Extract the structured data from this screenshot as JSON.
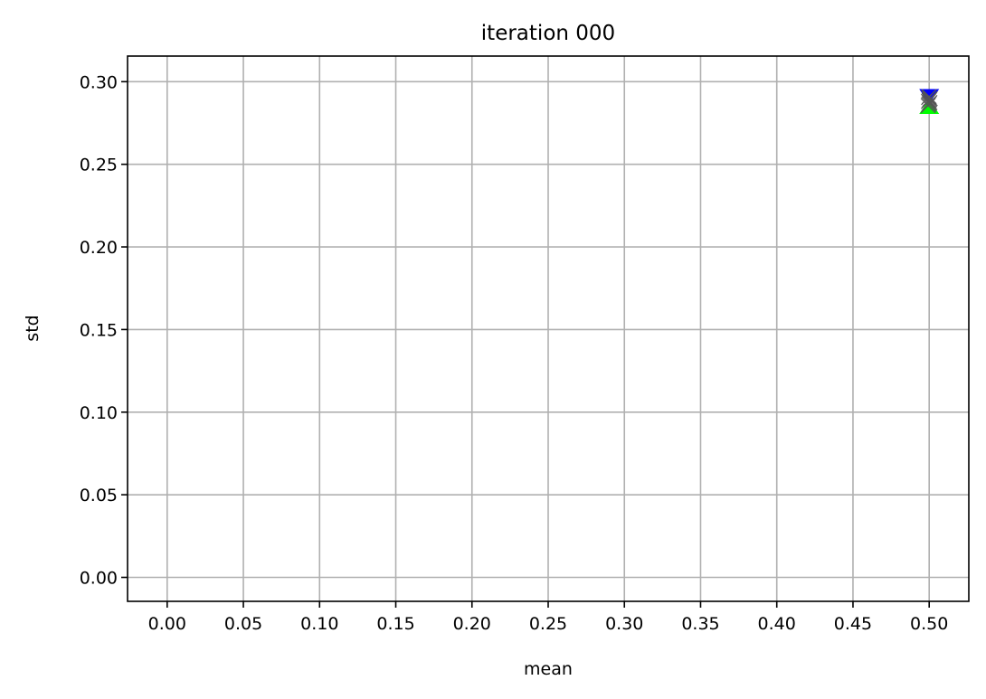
{
  "chart_data": {
    "type": "scatter",
    "title": "iteration 000",
    "xlabel": "mean",
    "ylabel": "std",
    "xlim": [
      -0.026,
      0.526
    ],
    "ylim": [
      -0.0145,
      0.3155
    ],
    "xticks": [
      "0.00",
      "0.05",
      "0.10",
      "0.15",
      "0.20",
      "0.25",
      "0.30",
      "0.35",
      "0.40",
      "0.45",
      "0.50"
    ],
    "yticks": [
      "0.00",
      "0.05",
      "0.10",
      "0.15",
      "0.20",
      "0.25",
      "0.30"
    ],
    "grid": true,
    "legend": "none",
    "series": [
      {
        "marker": "triangle-down",
        "color": "#0000ff",
        "points": [
          {
            "x": 0.5,
            "y": 0.291
          }
        ]
      },
      {
        "marker": "triangle-up",
        "color": "#00ff00",
        "points": [
          {
            "x": 0.5,
            "y": 0.285
          }
        ]
      },
      {
        "marker": "cross",
        "color": "#555555",
        "points": [
          {
            "x": 0.4993,
            "y": 0.2855
          },
          {
            "x": 0.4997,
            "y": 0.2862
          },
          {
            "x": 0.5001,
            "y": 0.2868
          },
          {
            "x": 0.5005,
            "y": 0.2874
          },
          {
            "x": 0.4995,
            "y": 0.288
          },
          {
            "x": 0.4999,
            "y": 0.2886
          },
          {
            "x": 0.5003,
            "y": 0.2892
          },
          {
            "x": 0.5007,
            "y": 0.2898
          },
          {
            "x": 0.4996,
            "y": 0.2904
          },
          {
            "x": 0.5,
            "y": 0.291
          }
        ]
      }
    ]
  }
}
